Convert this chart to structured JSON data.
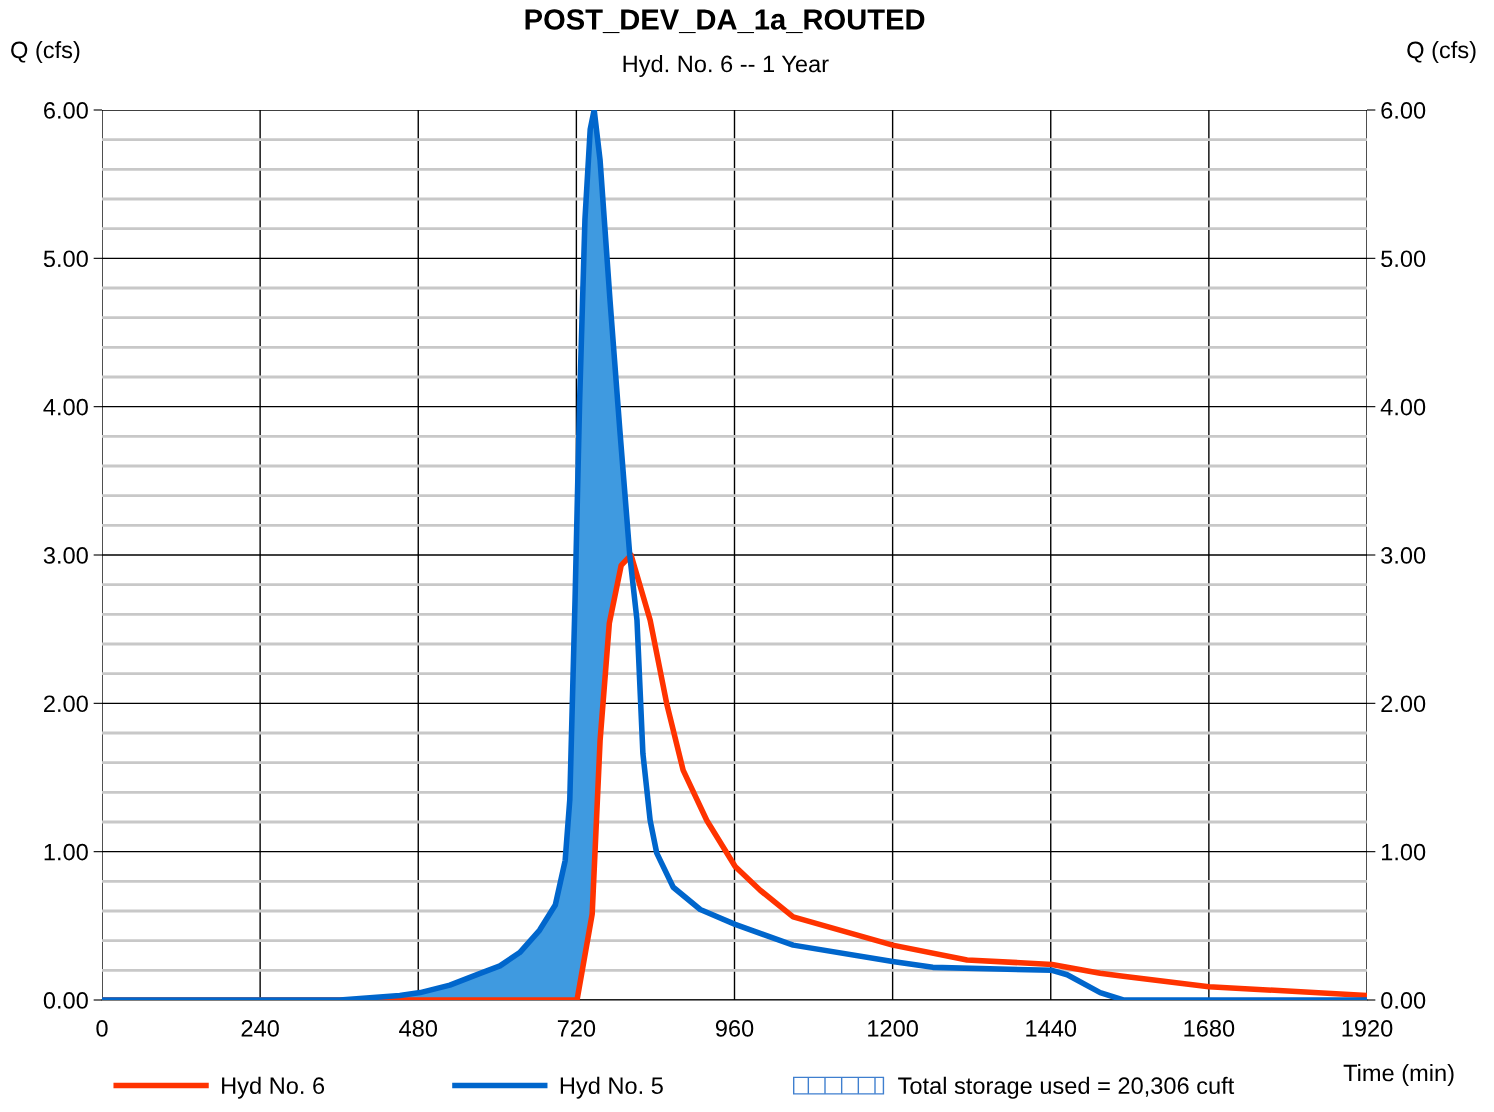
{
  "chart_data": {
    "type": "line",
    "title": "POST_DEV_DA_1a_ROUTED",
    "subtitle": "Hyd. No. 6 -- 1 Year",
    "xlabel": "Time (min)",
    "ylabel": "Q (cfs)",
    "y2label": "Q (cfs)",
    "series": [
      {
        "name": "Hyd No. 6",
        "color": "#ff3300",
        "x": [
          0,
          721,
          744,
          756,
          770,
          788,
          803,
          832,
          857,
          882,
          918,
          961,
          999,
          1049,
          1200,
          1313,
          1442,
          1515,
          1550,
          1680,
          1920
        ],
        "values": [
          0,
          0,
          0.58,
          1.75,
          2.54,
          2.93,
          3.0,
          2.56,
          2.0,
          1.55,
          1.21,
          0.9,
          0.74,
          0.56,
          0.37,
          0.27,
          0.24,
          0.18,
          0.16,
          0.09,
          0.03
        ]
      },
      {
        "name": "Hyd No. 5",
        "color": "#0066cc",
        "x": [
          0,
          361,
          452,
          483,
          528,
          574,
          604,
          634,
          664,
          688,
          703,
          710,
          718,
          725,
          733,
          741,
          747,
          756,
          771,
          786,
          801,
          812,
          821,
          832,
          842,
          867,
          908,
          961,
          1049,
          1200,
          1261,
          1442,
          1465,
          1515,
          1550,
          1920
        ],
        "values": [
          0,
          0,
          0.03,
          0.05,
          0.1,
          0.18,
          0.23,
          0.32,
          0.47,
          0.64,
          0.94,
          1.35,
          2.7,
          4.05,
          5.26,
          5.87,
          6.0,
          5.66,
          4.72,
          3.84,
          3.0,
          2.56,
          1.66,
          1.21,
          0.99,
          0.76,
          0.61,
          0.51,
          0.37,
          0.26,
          0.22,
          0.2,
          0.17,
          0.05,
          0,
          0
        ]
      }
    ],
    "annotations": [
      "Total storage used = 20,306 cuft"
    ],
    "xlim": [
      0,
      1920
    ],
    "xticks": [
      0,
      240,
      480,
      720,
      960,
      1200,
      1440,
      1680,
      1920
    ],
    "ylim": [
      0,
      6
    ],
    "yticks": [
      {
        "value": 0,
        "label": "0.00"
      },
      {
        "value": 1,
        "label": "1.00"
      },
      {
        "value": 2,
        "label": "2.00"
      },
      {
        "value": 3,
        "label": "3.00"
      },
      {
        "value": 4,
        "label": "4.00"
      },
      {
        "value": 5,
        "label": "5.00"
      },
      {
        "value": 6,
        "label": "6.00"
      }
    ],
    "y2lim": [
      0,
      6
    ],
    "y2ticks": [
      {
        "value": 0,
        "label": "0.00"
      },
      {
        "value": 1,
        "label": "1.00"
      },
      {
        "value": 2,
        "label": "2.00"
      },
      {
        "value": 3,
        "label": "3.00"
      },
      {
        "value": 4,
        "label": "4.00"
      },
      {
        "value": 5,
        "label": "5.00"
      },
      {
        "value": 6,
        "label": "6.00"
      }
    ],
    "grid": true,
    "legend": "bottom",
    "line_style": "solid"
  }
}
